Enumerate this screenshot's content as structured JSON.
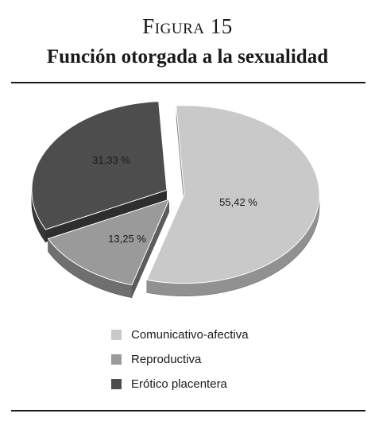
{
  "figure": {
    "label": "Figura 15",
    "title": "Función otorgada a la sexualidad"
  },
  "chart_data": {
    "type": "pie",
    "style": "3d-exploded",
    "slices": [
      {
        "name": "Comunicativo-afectiva",
        "value": 55.42,
        "label": "55,42 %",
        "color": "#c9c9c9"
      },
      {
        "name": "Reproductiva",
        "value": 13.25,
        "label": "13,25 %",
        "color": "#9a9a9a"
      },
      {
        "name": "Erótico placentera",
        "value": 31.33,
        "label": "31,33 %",
        "color": "#4d4d4d"
      }
    ],
    "legend_position": "bottom"
  }
}
